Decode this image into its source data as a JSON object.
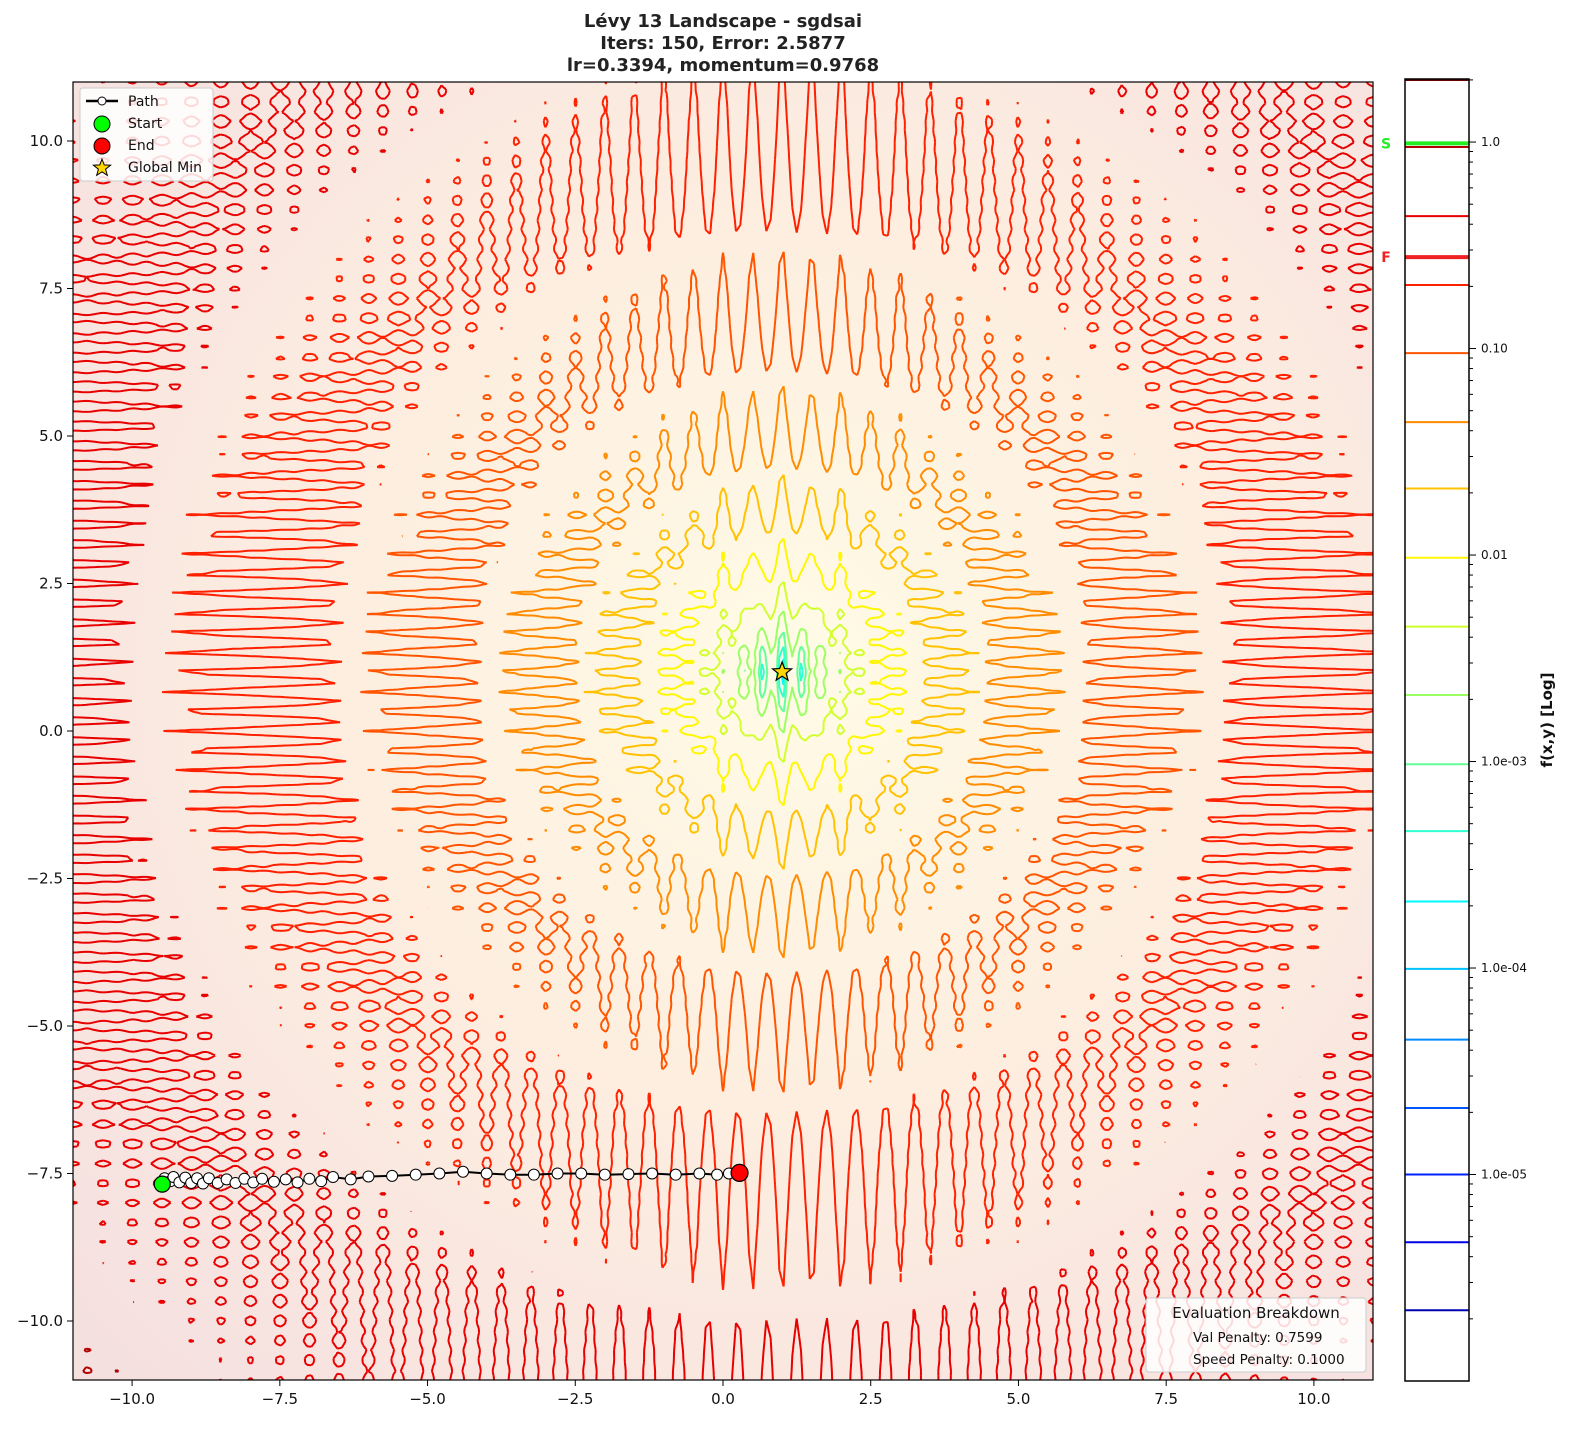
{
  "chart_data": {
    "type": "contour",
    "title_lines": [
      "Lévy 13 Landscape - sgdsai",
      "Iters: 150, Error: 2.5877",
      "lr=0.3394, momentum=0.9768"
    ],
    "xlabel": "",
    "ylabel": "",
    "xlim": [
      -11,
      11
    ],
    "ylim": [
      -11,
      11
    ],
    "x_ticks": [
      -10,
      -7.5,
      -5,
      -2.5,
      0,
      2.5,
      5,
      7.5,
      10
    ],
    "x_tick_labels": [
      "−10.0",
      "−7.5",
      "−5.0",
      "−2.5",
      "0.0",
      "2.5",
      "5.0",
      "7.5",
      "10.0"
    ],
    "y_ticks": [
      10,
      7.5,
      5,
      2.5,
      0,
      -2.5,
      -5,
      -7.5,
      -10
    ],
    "y_tick_labels": [
      "10.0",
      "7.5",
      "5.0",
      "2.5",
      "0.0",
      "−2.5",
      "−5.0",
      "−7.5",
      "−10.0"
    ],
    "function": "Lévy 13",
    "colormap": "jet",
    "contour_levels": [
      2.2e-06,
      4.7e-06,
      1e-05,
      2.1e-05,
      4.5e-05,
      9.9e-05,
      0.00021,
      0.00046,
      0.00097,
      0.0021,
      0.0045,
      0.0097,
      0.021,
      0.044,
      0.095,
      0.203,
      0.438,
      0.946
    ],
    "legend": {
      "placement": "top-left",
      "entries": [
        "Path",
        "Start",
        "End",
        "Global Min"
      ]
    },
    "path": {
      "name": "Path",
      "iterations": 150,
      "points": [
        [
          -9.49,
          -7.68
        ],
        [
          -9.45,
          -7.58
        ],
        [
          -9.35,
          -7.63
        ],
        [
          -9.3,
          -7.56
        ],
        [
          -9.2,
          -7.65
        ],
        [
          -9.1,
          -7.57
        ],
        [
          -9.0,
          -7.66
        ],
        [
          -8.9,
          -7.58
        ],
        [
          -8.8,
          -7.67
        ],
        [
          -8.7,
          -7.58
        ],
        [
          -8.55,
          -7.66
        ],
        [
          -8.4,
          -7.6
        ],
        [
          -8.25,
          -7.66
        ],
        [
          -8.1,
          -7.59
        ],
        [
          -7.95,
          -7.65
        ],
        [
          -7.8,
          -7.59
        ],
        [
          -7.6,
          -7.64
        ],
        [
          -7.4,
          -7.6
        ],
        [
          -7.2,
          -7.65
        ],
        [
          -7.0,
          -7.59
        ],
        [
          -6.8,
          -7.63
        ],
        [
          -6.6,
          -7.56
        ],
        [
          -6.3,
          -7.6
        ],
        [
          -6.0,
          -7.55
        ],
        [
          -5.6,
          -7.54
        ],
        [
          -5.2,
          -7.52
        ],
        [
          -4.8,
          -7.5
        ],
        [
          -4.4,
          -7.47
        ],
        [
          -4.0,
          -7.5
        ],
        [
          -3.6,
          -7.52
        ],
        [
          -3.2,
          -7.52
        ],
        [
          -2.8,
          -7.5
        ],
        [
          -2.4,
          -7.5
        ],
        [
          -2.0,
          -7.52
        ],
        [
          -1.6,
          -7.51
        ],
        [
          -1.2,
          -7.5
        ],
        [
          -0.8,
          -7.52
        ],
        [
          -0.4,
          -7.5
        ],
        [
          -0.1,
          -7.52
        ],
        [
          0.1,
          -7.5
        ],
        [
          0.28,
          -7.49
        ]
      ]
    },
    "start": {
      "label": "Start",
      "x": -9.49,
      "y": -7.68,
      "color": "#00ff00"
    },
    "end": {
      "label": "End",
      "x": 0.28,
      "y": -7.49,
      "color": "#ff0000"
    },
    "global_min": {
      "label": "Global Min",
      "x": 1,
      "y": 1,
      "color": "#ffd700"
    },
    "colorbar": {
      "label": "f(x,y) [Log]",
      "scale": "log",
      "range": [
        1e-06,
        2.02
      ],
      "ticks": [
        1.0,
        0.1,
        0.01,
        0.001,
        0.0001,
        1e-05
      ],
      "tick_labels": [
        "1.0",
        "0.10",
        "0.01",
        "1.0e-03",
        "1.0e-04",
        "1.0e-05"
      ],
      "start_marker": {
        "label": "S",
        "value": 0.985,
        "color": "#22ee22"
      },
      "final_marker": {
        "label": "F",
        "value": 0.277,
        "color": "#ee2222"
      }
    },
    "evaluation_box": {
      "title": "Evaluation Breakdown",
      "lines": [
        "Val Penalty: 0.7599",
        "Speed Penalty: 0.1000"
      ]
    }
  }
}
